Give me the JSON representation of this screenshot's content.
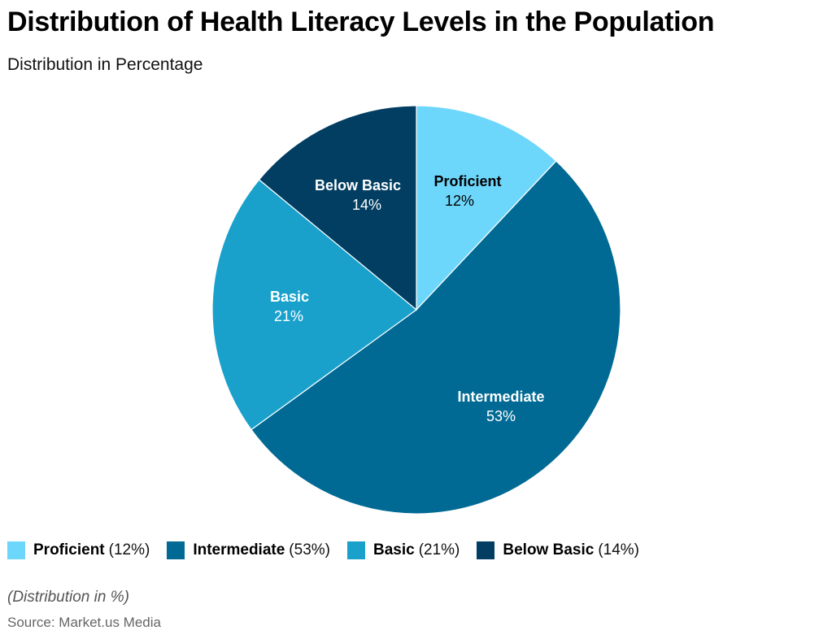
{
  "header": {
    "title": "Distribution of Health Literacy Levels in the Population",
    "subtitle": "Distribution in Percentage"
  },
  "chart_data": {
    "type": "pie",
    "title": "Distribution of Health Literacy Levels in the Population",
    "subtitle": "Distribution in Percentage",
    "categories": [
      "Proficient",
      "Intermediate",
      "Basic",
      "Below Basic"
    ],
    "values": [
      12,
      53,
      21,
      14
    ],
    "unit": "%",
    "colors": [
      "#6dd7fb",
      "#006a94",
      "#19a1cc",
      "#013e62"
    ],
    "label_colors": [
      "#000000",
      "#ffffff",
      "#ffffff",
      "#ffffff"
    ],
    "start_angle": "12 o'clock",
    "direction": "clockwise",
    "legend_position": "bottom"
  },
  "slices": [
    {
      "label": "Proficient",
      "value": "12%",
      "color": "#6dd7fb",
      "text_color": "#000000"
    },
    {
      "label": "Intermediate",
      "value": "53%",
      "color": "#006a94",
      "text_color": "#ffffff"
    },
    {
      "label": "Basic",
      "value": "21%",
      "color": "#19a1cc",
      "text_color": "#ffffff"
    },
    {
      "label": "Below Basic",
      "value": "14%",
      "color": "#013e62",
      "text_color": "#ffffff"
    }
  ],
  "legend": {
    "items": [
      {
        "name": "Proficient",
        "pct": "(12%)",
        "color": "#6dd7fb"
      },
      {
        "name": "Intermediate",
        "pct": "(53%)",
        "color": "#006a94"
      },
      {
        "name": "Basic",
        "pct": "(21%)",
        "color": "#19a1cc"
      },
      {
        "name": "Below Basic",
        "pct": "(14%)",
        "color": "#013e62"
      }
    ]
  },
  "footer": {
    "note": "(Distribution in %)",
    "source": "Source: Market.us Media"
  }
}
